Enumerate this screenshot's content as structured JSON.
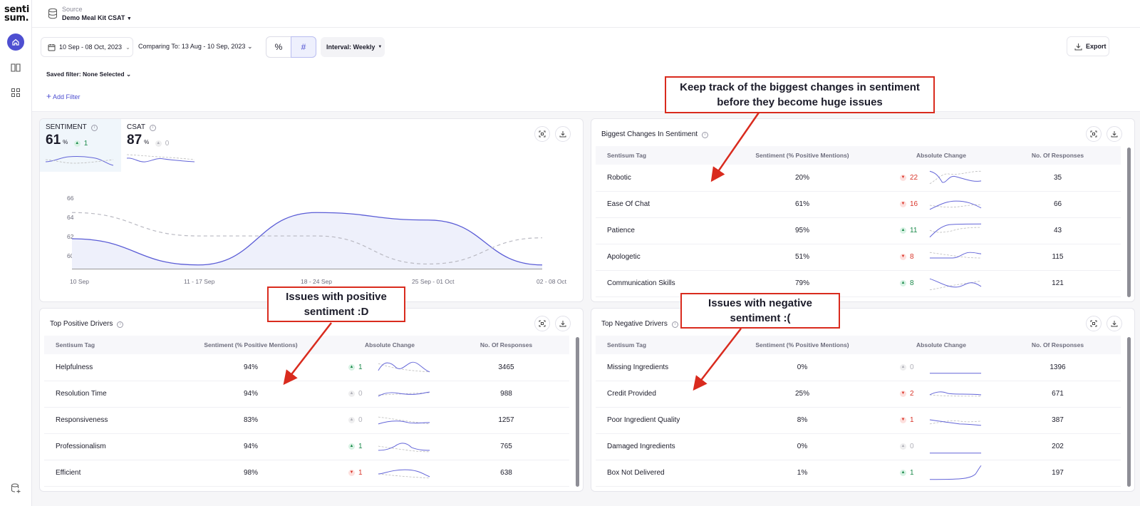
{
  "brand": {
    "logo_line1": "senti",
    "logo_line2": "sum."
  },
  "source": {
    "label": "Source",
    "value": "Demo Meal Kit CSAT"
  },
  "toolbar": {
    "date_range": "10 Sep - 08 Oct, 2023",
    "comparing": "Comparing To: 13 Aug - 10 Sep, 2023",
    "percent_label": "%",
    "count_label": "#",
    "interval": "Interval: Weekly",
    "export": "Export",
    "saved_filter": "Saved filter: None Selected",
    "add_filter": "Add Filter"
  },
  "metrics": [
    {
      "label": "SENTIMENT",
      "value": "61",
      "unit": "%",
      "change": "1",
      "direction": "up"
    },
    {
      "label": "CSAT",
      "value": "87",
      "unit": "%",
      "change": "0",
      "direction": "flat"
    }
  ],
  "chart_data": {
    "type": "line",
    "x": [
      "10 Sep",
      "11 - 17 Sep",
      "18 - 24 Sep",
      "25 Sep - 01 Oct",
      "02 - 08 Oct"
    ],
    "ylim": [
      58,
      66
    ],
    "y_ticks": [
      "66",
      "64",
      "62",
      "60"
    ],
    "series": [
      {
        "values": [
          61.2,
          58.4,
          64.0,
          63.2,
          58.4
        ],
        "style": "solid"
      },
      {
        "values": [
          64.0,
          61.5,
          61.5,
          58.5,
          61.3
        ],
        "style": "dashed"
      }
    ]
  },
  "biggest_changes": {
    "title": "Biggest Changes In Sentiment",
    "columns": [
      "Sentisum Tag",
      "Sentiment (% Positive Mentions)",
      "Absolute Change",
      "No. Of Responses"
    ],
    "rows": [
      {
        "tag": "Robotic",
        "sentiment": "20%",
        "change": "22",
        "dir": "down",
        "responses": "35"
      },
      {
        "tag": "Ease Of Chat",
        "sentiment": "61%",
        "change": "16",
        "dir": "down",
        "responses": "66"
      },
      {
        "tag": "Patience",
        "sentiment": "95%",
        "change": "11",
        "dir": "up",
        "responses": "43"
      },
      {
        "tag": "Apologetic",
        "sentiment": "51%",
        "change": "8",
        "dir": "down",
        "responses": "115"
      },
      {
        "tag": "Communication Skills",
        "sentiment": "79%",
        "change": "8",
        "dir": "up",
        "responses": "121"
      }
    ]
  },
  "top_positive": {
    "title": "Top Positive Drivers",
    "columns": [
      "Sentisum Tag",
      "Sentiment (% Positive Mentions)",
      "Absolute Change",
      "No. Of Responses"
    ],
    "rows": [
      {
        "tag": "Helpfulness",
        "sentiment": "94%",
        "change": "1",
        "dir": "up",
        "responses": "3465"
      },
      {
        "tag": "Resolution Time",
        "sentiment": "94%",
        "change": "0",
        "dir": "flat",
        "responses": "988"
      },
      {
        "tag": "Responsiveness",
        "sentiment": "83%",
        "change": "0",
        "dir": "flat",
        "responses": "1257"
      },
      {
        "tag": "Professionalism",
        "sentiment": "94%",
        "change": "1",
        "dir": "up",
        "responses": "765"
      },
      {
        "tag": "Efficient",
        "sentiment": "98%",
        "change": "1",
        "dir": "down",
        "responses": "638"
      }
    ]
  },
  "top_negative": {
    "title": "Top Negative Drivers",
    "columns": [
      "Sentisum Tag",
      "Sentiment (% Positive Mentions)",
      "Absolute Change",
      "No. Of Responses"
    ],
    "rows": [
      {
        "tag": "Missing Ingredients",
        "sentiment": "0%",
        "change": "0",
        "dir": "flat",
        "responses": "1396"
      },
      {
        "tag": "Credit Provided",
        "sentiment": "25%",
        "change": "2",
        "dir": "down",
        "responses": "671"
      },
      {
        "tag": "Poor Ingredient Quality",
        "sentiment": "8%",
        "change": "1",
        "dir": "down",
        "responses": "387"
      },
      {
        "tag": "Damaged Ingredients",
        "sentiment": "0%",
        "change": "0",
        "dir": "flat",
        "responses": "202"
      },
      {
        "tag": "Box Not Delivered",
        "sentiment": "1%",
        "change": "1",
        "dir": "up",
        "responses": "197"
      }
    ]
  },
  "callouts": {
    "top": "Keep track of the biggest changes in sentiment before they become huge issues",
    "positive": "Issues with positive sentiment :D",
    "negative": "Issues with negative sentiment :("
  },
  "colors": {
    "accent": "#4e4fd1",
    "annotation": "#d92b1e",
    "positive": "#1b8a4a",
    "negative": "#d9362b"
  }
}
